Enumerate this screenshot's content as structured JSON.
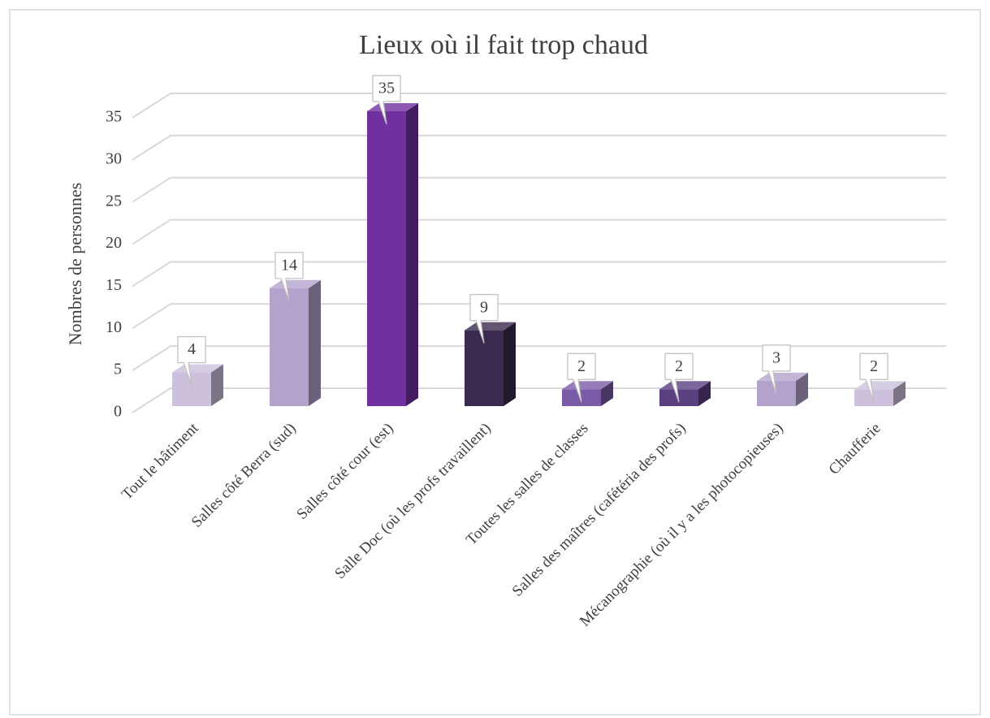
{
  "chart_data": {
    "type": "bar3d",
    "title": "Lieux où il fait trop chaud",
    "ylabel": "Nombres de personnes",
    "categories": [
      "Tout le bâtiment",
      "Salles côté Berra (sud)",
      "Salles côté cour (est)",
      "Salle Doc (où les profs travaillent)",
      "Toutes les salles de classes",
      "Salles des maîtres (cafétéria des profs)",
      "Mécanographie (où il y a les photocopieuses)",
      "Chaufferie"
    ],
    "values": [
      4,
      14,
      35,
      9,
      2,
      2,
      3,
      2
    ],
    "colors": [
      "#cdc0dc",
      "#b3a2cb",
      "#7030a0",
      "#3b2a4f",
      "#7a5aa6",
      "#5a4080",
      "#b3a2cb",
      "#cdc0dc"
    ],
    "ylim": [
      0,
      35
    ],
    "yticks": [
      0,
      5,
      10,
      15,
      20,
      25,
      30,
      35
    ],
    "grid": true
  }
}
